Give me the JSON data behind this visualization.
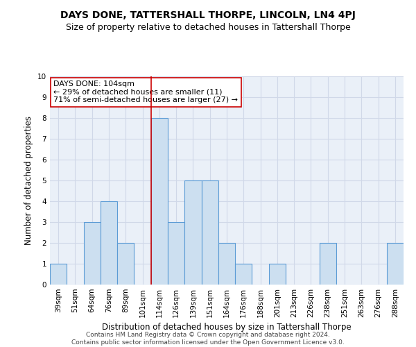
{
  "title": "DAYS DONE, TATTERSHALL THORPE, LINCOLN, LN4 4PJ",
  "subtitle": "Size of property relative to detached houses in Tattershall Thorpe",
  "xlabel": "Distribution of detached houses by size in Tattershall Thorpe",
  "ylabel": "Number of detached properties",
  "categories": [
    "39sqm",
    "51sqm",
    "64sqm",
    "76sqm",
    "89sqm",
    "101sqm",
    "114sqm",
    "126sqm",
    "139sqm",
    "151sqm",
    "164sqm",
    "176sqm",
    "188sqm",
    "201sqm",
    "213sqm",
    "226sqm",
    "238sqm",
    "251sqm",
    "263sqm",
    "276sqm",
    "288sqm"
  ],
  "values": [
    1,
    0,
    3,
    4,
    2,
    0,
    8,
    3,
    5,
    5,
    2,
    1,
    0,
    1,
    0,
    0,
    2,
    0,
    0,
    0,
    2
  ],
  "bar_color": "#ccdff0",
  "bar_edge_color": "#5b9bd5",
  "vline_x": 6,
  "annotation_text": "DAYS DONE: 104sqm\n← 29% of detached houses are smaller (11)\n71% of semi-detached houses are larger (27) →",
  "annotation_box_color": "white",
  "annotation_box_edge": "#cc0000",
  "vline_color": "#cc0000",
  "ylim": [
    0,
    10
  ],
  "yticks": [
    0,
    1,
    2,
    3,
    4,
    5,
    6,
    7,
    8,
    9,
    10
  ],
  "grid_color": "#d0d8e8",
  "background_color": "#eaf0f8",
  "footer_line1": "Contains HM Land Registry data © Crown copyright and database right 2024.",
  "footer_line2": "Contains public sector information licensed under the Open Government Licence v3.0.",
  "title_fontsize": 10,
  "subtitle_fontsize": 9,
  "xlabel_fontsize": 8.5,
  "ylabel_fontsize": 8.5,
  "tick_fontsize": 7.5,
  "annotation_fontsize": 8,
  "footer_fontsize": 6.5
}
